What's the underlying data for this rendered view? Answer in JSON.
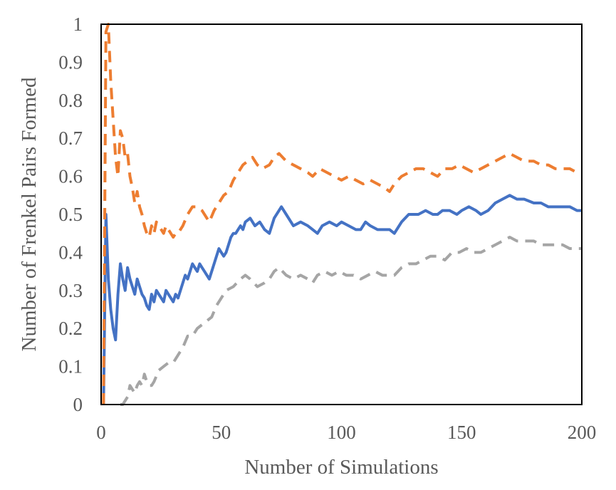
{
  "chart_data": {
    "type": "line",
    "title": "",
    "xlabel": "Number of Simulations",
    "ylabel": "Number of Frenkel Pairs Formed",
    "xlim": [
      0,
      200
    ],
    "ylim": [
      0,
      1
    ],
    "x_ticks": [
      "0",
      "50",
      "100",
      "150",
      "200"
    ],
    "y_ticks": [
      "0",
      "0.1",
      "0.2",
      "0.3",
      "0.4",
      "0.5",
      "0.6",
      "0.7",
      "0.8",
      "0.9",
      "1"
    ],
    "grid": false,
    "legend": "none",
    "series": [
      {
        "style": "solid",
        "color": "#4472C4",
        "points": [
          [
            1,
            0
          ],
          [
            2,
            0.5
          ],
          [
            3,
            0.33
          ],
          [
            4,
            0.25
          ],
          [
            5,
            0.2
          ],
          [
            6,
            0.17
          ],
          [
            7,
            0.29
          ],
          [
            8,
            0.37
          ],
          [
            9,
            0.33
          ],
          [
            10,
            0.3
          ],
          [
            11,
            0.36
          ],
          [
            12,
            0.33
          ],
          [
            13,
            0.31
          ],
          [
            14,
            0.29
          ],
          [
            15,
            0.33
          ],
          [
            16,
            0.31
          ],
          [
            17,
            0.29
          ],
          [
            18,
            0.28
          ],
          [
            19,
            0.26
          ],
          [
            20,
            0.25
          ],
          [
            21,
            0.29
          ],
          [
            22,
            0.27
          ],
          [
            23,
            0.3
          ],
          [
            24,
            0.29
          ],
          [
            25,
            0.28
          ],
          [
            26,
            0.27
          ],
          [
            27,
            0.3
          ],
          [
            28,
            0.29
          ],
          [
            29,
            0.28
          ],
          [
            30,
            0.27
          ],
          [
            31,
            0.29
          ],
          [
            32,
            0.28
          ],
          [
            33,
            0.3
          ],
          [
            34,
            0.32
          ],
          [
            35,
            0.34
          ],
          [
            36,
            0.33
          ],
          [
            37,
            0.35
          ],
          [
            38,
            0.37
          ],
          [
            39,
            0.36
          ],
          [
            40,
            0.35
          ],
          [
            41,
            0.37
          ],
          [
            42,
            0.36
          ],
          [
            43,
            0.35
          ],
          [
            44,
            0.34
          ],
          [
            45,
            0.33
          ],
          [
            46,
            0.35
          ],
          [
            47,
            0.37
          ],
          [
            48,
            0.39
          ],
          [
            49,
            0.41
          ],
          [
            50,
            0.4
          ],
          [
            51,
            0.39
          ],
          [
            52,
            0.4
          ],
          [
            53,
            0.42
          ],
          [
            54,
            0.44
          ],
          [
            55,
            0.45
          ],
          [
            56,
            0.45
          ],
          [
            57,
            0.46
          ],
          [
            58,
            0.47
          ],
          [
            59,
            0.46
          ],
          [
            60,
            0.48
          ],
          [
            62,
            0.49
          ],
          [
            64,
            0.47
          ],
          [
            66,
            0.48
          ],
          [
            68,
            0.46
          ],
          [
            70,
            0.45
          ],
          [
            72,
            0.49
          ],
          [
            74,
            0.51
          ],
          [
            75,
            0.52
          ],
          [
            77,
            0.5
          ],
          [
            80,
            0.47
          ],
          [
            83,
            0.48
          ],
          [
            86,
            0.47
          ],
          [
            88,
            0.46
          ],
          [
            90,
            0.45
          ],
          [
            92,
            0.47
          ],
          [
            95,
            0.48
          ],
          [
            98,
            0.47
          ],
          [
            100,
            0.48
          ],
          [
            103,
            0.47
          ],
          [
            106,
            0.46
          ],
          [
            108,
            0.46
          ],
          [
            110,
            0.48
          ],
          [
            112,
            0.47
          ],
          [
            115,
            0.46
          ],
          [
            118,
            0.46
          ],
          [
            120,
            0.46
          ],
          [
            122,
            0.45
          ],
          [
            125,
            0.48
          ],
          [
            128,
            0.5
          ],
          [
            130,
            0.5
          ],
          [
            132,
            0.5
          ],
          [
            135,
            0.51
          ],
          [
            138,
            0.5
          ],
          [
            140,
            0.5
          ],
          [
            142,
            0.51
          ],
          [
            145,
            0.51
          ],
          [
            148,
            0.5
          ],
          [
            150,
            0.51
          ],
          [
            153,
            0.52
          ],
          [
            156,
            0.51
          ],
          [
            158,
            0.5
          ],
          [
            161,
            0.51
          ],
          [
            164,
            0.53
          ],
          [
            167,
            0.54
          ],
          [
            170,
            0.55
          ],
          [
            173,
            0.54
          ],
          [
            176,
            0.54
          ],
          [
            180,
            0.53
          ],
          [
            183,
            0.53
          ],
          [
            186,
            0.52
          ],
          [
            189,
            0.52
          ],
          [
            192,
            0.52
          ],
          [
            195,
            0.52
          ],
          [
            198,
            0.51
          ],
          [
            200,
            0.51
          ]
        ]
      },
      {
        "style": "dashed",
        "color": "#ED7D31",
        "points": [
          [
            1,
            0
          ],
          [
            2,
            0.98
          ],
          [
            3,
            1.0
          ],
          [
            4,
            0.85
          ],
          [
            5,
            0.75
          ],
          [
            6,
            0.65
          ],
          [
            7,
            0.6
          ],
          [
            8,
            0.72
          ],
          [
            9,
            0.7
          ],
          [
            10,
            0.65
          ],
          [
            11,
            0.66
          ],
          [
            12,
            0.6
          ],
          [
            13,
            0.57
          ],
          [
            14,
            0.53
          ],
          [
            15,
            0.56
          ],
          [
            16,
            0.52
          ],
          [
            17,
            0.5
          ],
          [
            18,
            0.47
          ],
          [
            19,
            0.45
          ],
          [
            20,
            0.44
          ],
          [
            21,
            0.47
          ],
          [
            22,
            0.45
          ],
          [
            23,
            0.48
          ],
          [
            24,
            0.47
          ],
          [
            25,
            0.46
          ],
          [
            26,
            0.45
          ],
          [
            27,
            0.47
          ],
          [
            28,
            0.46
          ],
          [
            29,
            0.45
          ],
          [
            30,
            0.44
          ],
          [
            31,
            0.45
          ],
          [
            32,
            0.45
          ],
          [
            34,
            0.47
          ],
          [
            36,
            0.5
          ],
          [
            38,
            0.52
          ],
          [
            40,
            0.52
          ],
          [
            42,
            0.51
          ],
          [
            44,
            0.49
          ],
          [
            45,
            0.48
          ],
          [
            47,
            0.51
          ],
          [
            49,
            0.53
          ],
          [
            51,
            0.55
          ],
          [
            53,
            0.56
          ],
          [
            55,
            0.59
          ],
          [
            57,
            0.61
          ],
          [
            59,
            0.63
          ],
          [
            61,
            0.64
          ],
          [
            63,
            0.65
          ],
          [
            65,
            0.63
          ],
          [
            67,
            0.62
          ],
          [
            70,
            0.63
          ],
          [
            72,
            0.65
          ],
          [
            74,
            0.66
          ],
          [
            77,
            0.64
          ],
          [
            80,
            0.63
          ],
          [
            83,
            0.62
          ],
          [
            86,
            0.61
          ],
          [
            88,
            0.6
          ],
          [
            91,
            0.62
          ],
          [
            94,
            0.61
          ],
          [
            97,
            0.6
          ],
          [
            100,
            0.59
          ],
          [
            103,
            0.6
          ],
          [
            106,
            0.59
          ],
          [
            109,
            0.58
          ],
          [
            112,
            0.59
          ],
          [
            115,
            0.58
          ],
          [
            118,
            0.57
          ],
          [
            120,
            0.56
          ],
          [
            122,
            0.58
          ],
          [
            125,
            0.6
          ],
          [
            128,
            0.61
          ],
          [
            131,
            0.62
          ],
          [
            134,
            0.62
          ],
          [
            137,
            0.61
          ],
          [
            140,
            0.6
          ],
          [
            143,
            0.62
          ],
          [
            146,
            0.62
          ],
          [
            149,
            0.63
          ],
          [
            152,
            0.62
          ],
          [
            155,
            0.61
          ],
          [
            158,
            0.62
          ],
          [
            161,
            0.63
          ],
          [
            164,
            0.64
          ],
          [
            167,
            0.65
          ],
          [
            170,
            0.66
          ],
          [
            173,
            0.65
          ],
          [
            176,
            0.64
          ],
          [
            180,
            0.64
          ],
          [
            183,
            0.63
          ],
          [
            186,
            0.63
          ],
          [
            189,
            0.62
          ],
          [
            192,
            0.62
          ],
          [
            195,
            0.62
          ],
          [
            198,
            0.61
          ],
          [
            200,
            0.61
          ]
        ]
      },
      {
        "style": "dashed",
        "color": "#A5A5A5",
        "points": [
          [
            8,
            0
          ],
          [
            9,
            0
          ],
          [
            10,
            0.01
          ],
          [
            11,
            0.02
          ],
          [
            12,
            0.05
          ],
          [
            13,
            0.04
          ],
          [
            14,
            0.03
          ],
          [
            15,
            0.05
          ],
          [
            16,
            0.06
          ],
          [
            17,
            0.05
          ],
          [
            18,
            0.08
          ],
          [
            19,
            0.06
          ],
          [
            20,
            0.05
          ],
          [
            21,
            0.05
          ],
          [
            22,
            0.06
          ],
          [
            24,
            0.09
          ],
          [
            26,
            0.1
          ],
          [
            28,
            0.11
          ],
          [
            30,
            0.11
          ],
          [
            32,
            0.13
          ],
          [
            34,
            0.15
          ],
          [
            36,
            0.18
          ],
          [
            38,
            0.18
          ],
          [
            40,
            0.2
          ],
          [
            42,
            0.21
          ],
          [
            44,
            0.22
          ],
          [
            46,
            0.23
          ],
          [
            48,
            0.26
          ],
          [
            50,
            0.28
          ],
          [
            52,
            0.3
          ],
          [
            55,
            0.31
          ],
          [
            58,
            0.33
          ],
          [
            60,
            0.34
          ],
          [
            62,
            0.33
          ],
          [
            65,
            0.31
          ],
          [
            68,
            0.32
          ],
          [
            70,
            0.33
          ],
          [
            72,
            0.35
          ],
          [
            74,
            0.36
          ],
          [
            77,
            0.34
          ],
          [
            80,
            0.33
          ],
          [
            83,
            0.34
          ],
          [
            86,
            0.33
          ],
          [
            88,
            0.32
          ],
          [
            90,
            0.34
          ],
          [
            93,
            0.35
          ],
          [
            96,
            0.34
          ],
          [
            99,
            0.35
          ],
          [
            102,
            0.34
          ],
          [
            105,
            0.34
          ],
          [
            108,
            0.33
          ],
          [
            111,
            0.34
          ],
          [
            114,
            0.35
          ],
          [
            117,
            0.34
          ],
          [
            120,
            0.34
          ],
          [
            122,
            0.34
          ],
          [
            125,
            0.36
          ],
          [
            128,
            0.37
          ],
          [
            131,
            0.37
          ],
          [
            134,
            0.38
          ],
          [
            137,
            0.39
          ],
          [
            140,
            0.39
          ],
          [
            143,
            0.38
          ],
          [
            146,
            0.4
          ],
          [
            149,
            0.4
          ],
          [
            152,
            0.41
          ],
          [
            155,
            0.4
          ],
          [
            158,
            0.4
          ],
          [
            161,
            0.41
          ],
          [
            164,
            0.42
          ],
          [
            167,
            0.43
          ],
          [
            170,
            0.44
          ],
          [
            173,
            0.43
          ],
          [
            176,
            0.43
          ],
          [
            180,
            0.43
          ],
          [
            183,
            0.42
          ],
          [
            186,
            0.42
          ],
          [
            189,
            0.42
          ],
          [
            192,
            0.42
          ],
          [
            195,
            0.41
          ],
          [
            198,
            0.41
          ],
          [
            200,
            0.41
          ]
        ]
      }
    ]
  }
}
